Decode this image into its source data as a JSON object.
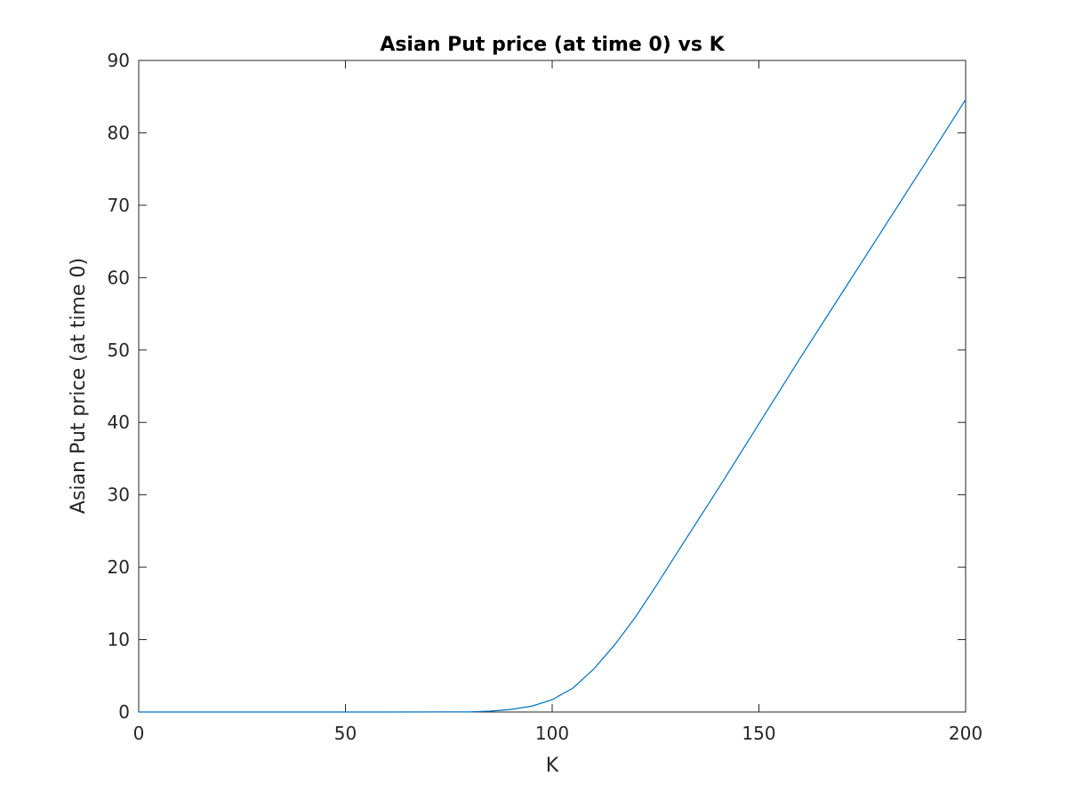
{
  "chart_data": {
    "type": "line",
    "title": "Asian Put price (at time 0) vs K",
    "xlabel": "K",
    "ylabel": "Asian Put price (at time 0)",
    "xlim": [
      0,
      200
    ],
    "ylim": [
      0,
      90
    ],
    "xticks": [
      0,
      50,
      100,
      150,
      200
    ],
    "yticks": [
      0,
      10,
      20,
      30,
      40,
      50,
      60,
      70,
      80,
      90
    ],
    "grid": false,
    "legend": "none",
    "series": [
      {
        "color": "#0072bd",
        "x": [
          0,
          20,
          40,
          60,
          80,
          85,
          90,
          95,
          100,
          105,
          110,
          115,
          120,
          125,
          130,
          140,
          150,
          160,
          170,
          180,
          190,
          200
        ],
        "y": [
          0,
          0,
          0,
          0,
          0.02,
          0.12,
          0.35,
          0.8,
          1.7,
          3.3,
          5.9,
          9.2,
          13.0,
          17.3,
          21.8,
          30.7,
          39.8,
          48.9,
          57.8,
          66.7,
          75.6,
          84.6
        ]
      }
    ]
  }
}
